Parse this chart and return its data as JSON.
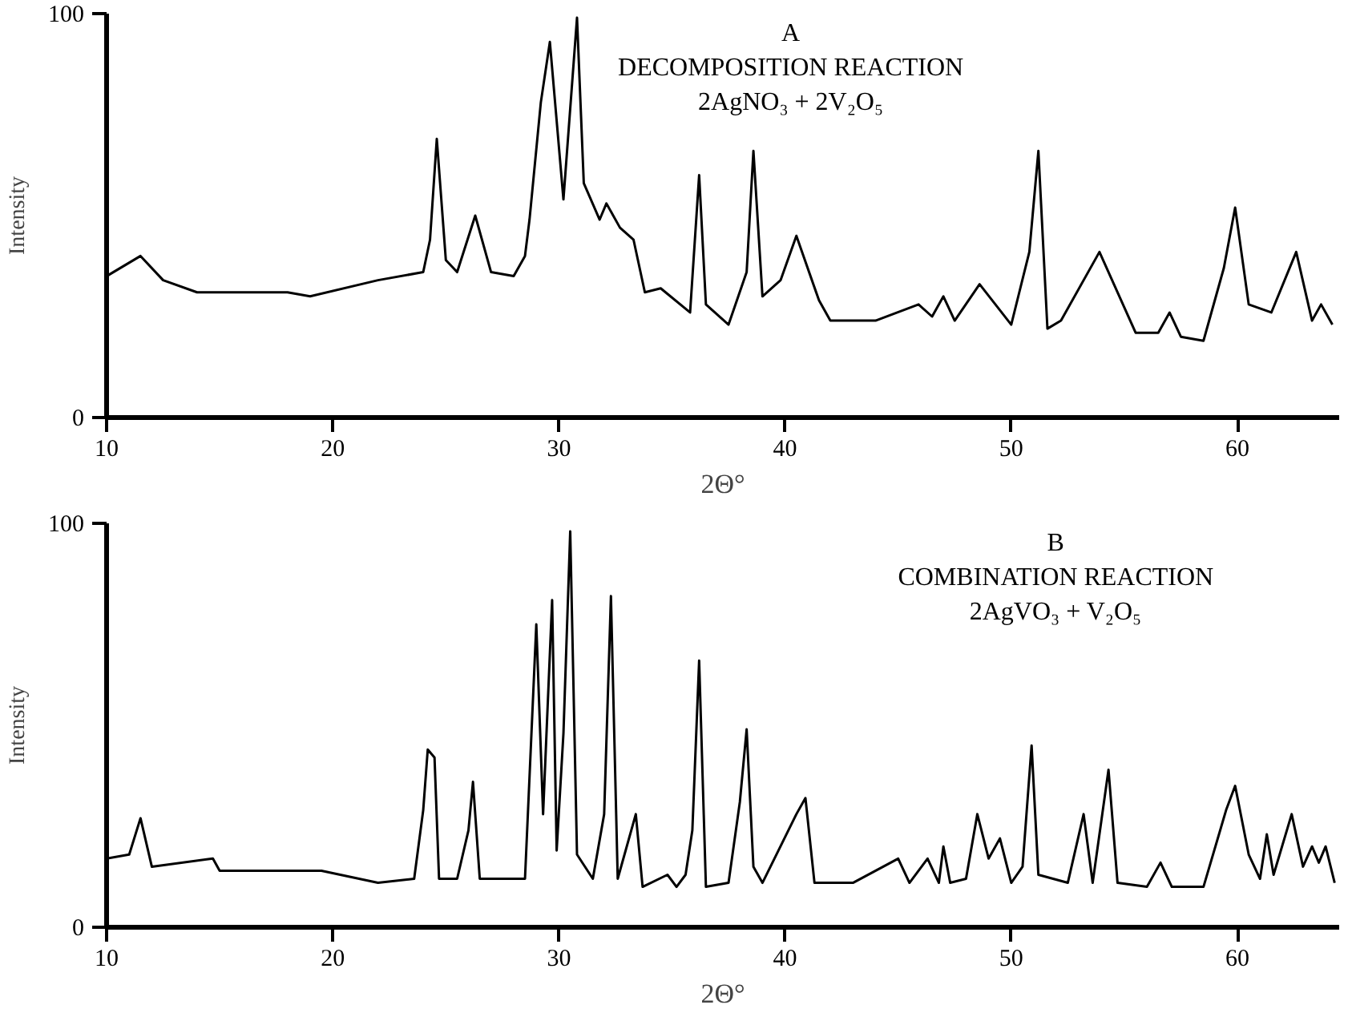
{
  "chart_data": [
    {
      "type": "line",
      "title": "A",
      "subtitle": "DECOMPOSITION REACTION",
      "annotations": [
        "2AgNO₃ + 2V₂O₅"
      ],
      "xlabel": "2Θ°",
      "ylabel": "Intensity",
      "xlim": [
        10,
        64.5
      ],
      "xticks": [
        10,
        20,
        30,
        40,
        50,
        60
      ],
      "ylim": [
        0,
        100
      ],
      "yticks": [
        0,
        100
      ],
      "grid": false,
      "marker": "none",
      "line_style": "solid",
      "series": [
        {
          "color": "#000000",
          "x": [
            10,
            11.5,
            12.5,
            14,
            18,
            19,
            22,
            24,
            24.3,
            24.6,
            25,
            25.5,
            26.3,
            27,
            28,
            28.5,
            28.7,
            29.2,
            29.6,
            30.2,
            30.8,
            31.1,
            31.8,
            32.1,
            32.7,
            33.3,
            33.8,
            34.5,
            35.8,
            36.2,
            36.5,
            37.5,
            38.3,
            38.6,
            39,
            39.8,
            40.5,
            41.5,
            42,
            44,
            45.9,
            46.5,
            47,
            47.5,
            48.6,
            50,
            50.8,
            51.2,
            51.6,
            52.2,
            53.9,
            55.5,
            56.5,
            57,
            57.5,
            58.5,
            59.4,
            59.9,
            60.5,
            61.5,
            62.6,
            63.3,
            63.7,
            64.2
          ],
          "values": [
            35,
            40,
            34,
            31,
            31,
            30,
            34,
            36,
            44,
            69,
            39,
            36,
            50,
            36,
            35,
            40,
            49,
            78,
            93,
            54,
            99,
            58,
            49,
            53,
            47,
            44,
            31,
            32,
            26,
            60,
            28,
            23,
            36,
            66,
            30,
            34,
            45,
            29,
            24,
            24,
            28,
            25,
            30,
            24,
            33,
            23,
            41,
            66,
            22,
            24,
            41,
            21,
            21,
            26,
            20,
            19,
            37,
            52,
            28,
            26,
            41,
            24,
            28,
            23
          ]
        }
      ]
    },
    {
      "type": "line",
      "title": "B",
      "subtitle": "COMBINATION REACTION",
      "annotations": [
        "2AgVO₃ + V₂O₅"
      ],
      "xlabel": "2Θ°",
      "ylabel": "Intensity",
      "xlim": [
        10,
        64.5
      ],
      "xticks": [
        10,
        20,
        30,
        40,
        50,
        60
      ],
      "ylim": [
        0,
        100
      ],
      "yticks": [
        0,
        100
      ],
      "grid": false,
      "marker": "none",
      "line_style": "solid",
      "series": [
        {
          "color": "#000000",
          "x": [
            10,
            11,
            11.5,
            12,
            14.7,
            15,
            19.5,
            22,
            23.6,
            24,
            24.2,
            24.5,
            24.7,
            25.5,
            26,
            26.2,
            26.5,
            28.5,
            29,
            29.3,
            29.7,
            29.9,
            30.2,
            30.5,
            30.8,
            31.5,
            32,
            32.3,
            32.6,
            33.4,
            33.7,
            34.8,
            35.2,
            35.6,
            35.9,
            36.2,
            36.5,
            37.5,
            38,
            38.3,
            38.6,
            39,
            40.5,
            40.9,
            41.3,
            43,
            45,
            45.5,
            46.3,
            46.8,
            47,
            47.3,
            48,
            48.5,
            49,
            49.5,
            50,
            50.5,
            50.9,
            51.2,
            52.5,
            53.2,
            53.6,
            54.3,
            54.7,
            56,
            56.6,
            57.1,
            58.5,
            59.5,
            59.9,
            60.5,
            61,
            61.3,
            61.6,
            62.4,
            62.9,
            63.3,
            63.6,
            63.9,
            64.3
          ],
          "values": [
            17,
            18,
            27,
            15,
            17,
            14,
            14,
            11,
            12,
            29,
            44,
            42,
            12,
            12,
            24,
            36,
            12,
            12,
            75,
            28,
            81,
            19,
            48,
            98,
            18,
            12,
            28,
            82,
            12,
            28,
            10,
            13,
            10,
            13,
            24,
            66,
            10,
            11,
            31,
            49,
            15,
            11,
            28,
            32,
            11,
            11,
            17,
            11,
            17,
            11,
            20,
            11,
            12,
            28,
            17,
            22,
            11,
            15,
            45,
            13,
            11,
            28,
            11,
            39,
            11,
            10,
            16,
            10,
            10,
            29,
            35,
            18,
            12,
            23,
            13,
            28,
            15,
            20,
            16,
            20,
            11
          ]
        }
      ]
    }
  ]
}
